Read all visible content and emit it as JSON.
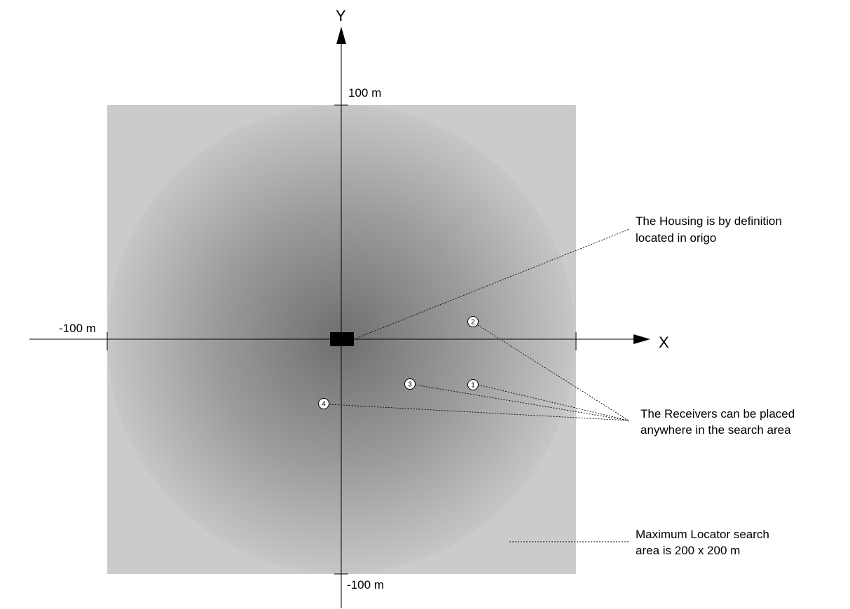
{
  "axes": {
    "x_label": "X",
    "y_label": "Y",
    "y_max_label": "100 m",
    "y_min_label": "-100 m",
    "x_min_label": "-100 m"
  },
  "receivers": [
    {
      "number": "1"
    },
    {
      "number": "2"
    },
    {
      "number": "3"
    },
    {
      "number": "4"
    }
  ],
  "annotations": {
    "housing": {
      "line1": "The Housing is by definition",
      "line2": "located in origo"
    },
    "receivers": {
      "line1": "The Receivers can be placed",
      "line2": "anywhere in the search area"
    },
    "search_area": {
      "line1": "Maximum Locator search",
      "line2": "area is 200 x 200 m"
    }
  },
  "colors": {
    "search_area": "#cbcbcb",
    "range_center": "#6f6f6f",
    "range_edge": "#c6c6c6",
    "housing": "#000000"
  }
}
